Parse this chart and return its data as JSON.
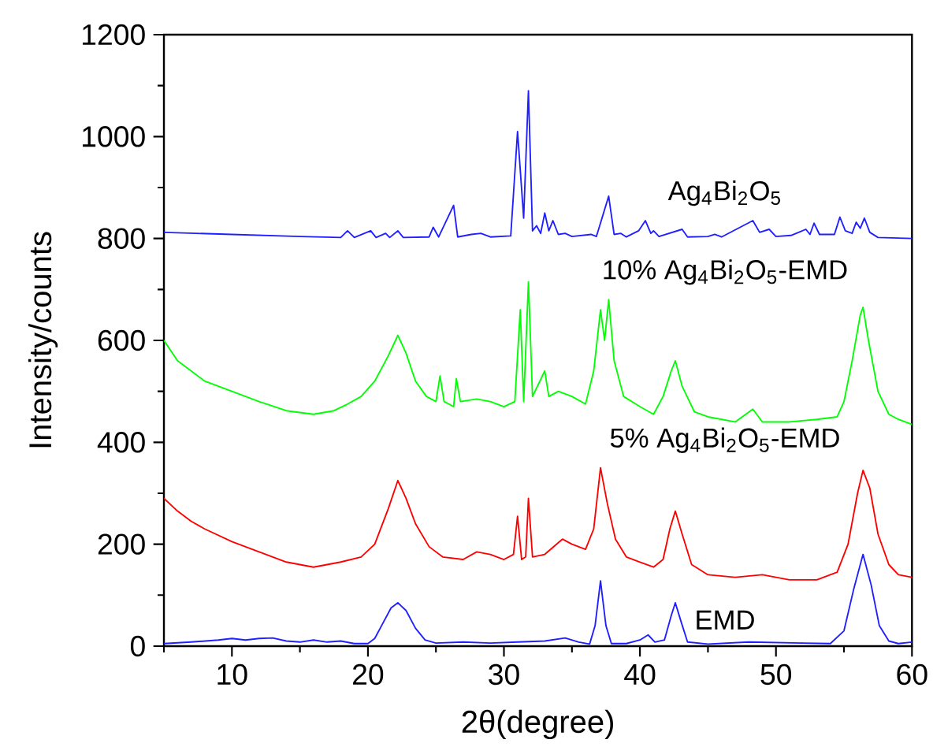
{
  "chart_data": {
    "type": "line",
    "xlabel": "2θ(degree)",
    "ylabel": "Intensity/counts",
    "xlim": [
      5,
      60
    ],
    "ylim": [
      0,
      1200
    ],
    "xticks": [
      {
        "value": 5,
        "label": null
      },
      10,
      {
        "value": 15,
        "label": null
      },
      20,
      {
        "value": 25,
        "label": null
      },
      30,
      {
        "value": 35,
        "label": null
      },
      40,
      {
        "value": 45,
        "label": null
      },
      50,
      {
        "value": 55,
        "label": null
      },
      60
    ],
    "yticks": [
      0,
      {
        "value": 100,
        "label": null
      },
      200,
      {
        "value": 300,
        "label": null
      },
      400,
      {
        "value": 500,
        "label": null
      },
      600,
      {
        "value": 700,
        "label": null
      },
      800,
      {
        "value": 900,
        "label": null
      },
      1000,
      {
        "value": 1100,
        "label": null
      },
      1200
    ],
    "series": [
      {
        "name": "EMD",
        "color": "#1f1fff",
        "x": [
          5,
          7,
          9,
          10,
          11,
          12,
          13,
          14,
          15,
          16,
          17,
          18,
          19,
          20,
          20.5,
          21,
          21.7,
          22.2,
          22.8,
          23.5,
          24.2,
          25,
          27,
          29,
          31,
          33,
          34.5,
          35.5,
          36.3,
          36.7,
          37.1,
          37.5,
          37.9,
          39,
          40,
          40.6,
          41.1,
          41.8,
          42.3,
          42.6,
          43,
          43.5,
          45,
          48,
          52,
          54,
          55,
          55.7,
          56.4,
          57,
          57.6,
          58.3,
          59,
          60
        ],
        "values": [
          5,
          8,
          12,
          15,
          12,
          15,
          16,
          10,
          8,
          12,
          8,
          10,
          5,
          5,
          15,
          40,
          75,
          85,
          70,
          35,
          12,
          6,
          8,
          6,
          8,
          10,
          16,
          8,
          4,
          40,
          128,
          40,
          5,
          5,
          12,
          22,
          8,
          12,
          60,
          85,
          50,
          8,
          4,
          8,
          6,
          5,
          30,
          110,
          180,
          120,
          40,
          10,
          5,
          8
        ]
      },
      {
        "name": "5% Ag$_{4}$Bi$_{2}$O$_{5}$-EMD",
        "color": "#ff0000",
        "x": [
          5,
          6,
          7,
          8,
          10,
          12,
          14,
          16,
          18,
          19.5,
          20.5,
          21.5,
          22.2,
          22.8,
          23.5,
          24.5,
          25.5,
          27,
          28,
          29,
          30,
          30.7,
          31,
          31.3,
          31.6,
          31.8,
          32.1,
          33,
          34.3,
          35,
          36,
          36.6,
          37.1,
          37.6,
          38.2,
          39,
          40,
          41,
          41.7,
          42.2,
          42.6,
          43.1,
          43.8,
          45,
          47,
          49,
          51,
          53,
          54.5,
          55.3,
          56,
          56.4,
          56.9,
          57.5,
          58.3,
          59,
          60
        ],
        "values": [
          290,
          265,
          245,
          230,
          205,
          185,
          165,
          155,
          165,
          175,
          200,
          270,
          325,
          290,
          240,
          195,
          175,
          170,
          185,
          180,
          170,
          180,
          255,
          170,
          175,
          290,
          175,
          180,
          210,
          200,
          190,
          230,
          350,
          280,
          210,
          175,
          165,
          155,
          170,
          230,
          265,
          220,
          160,
          140,
          135,
          140,
          130,
          130,
          145,
          200,
          300,
          345,
          310,
          220,
          160,
          140,
          135
        ]
      },
      {
        "name": "10% Ag$_{4}$Bi$_{2}$O$_{5}$-EMD",
        "color": "#00ff00",
        "x": [
          5,
          6,
          7,
          8,
          10,
          12,
          14,
          16,
          17.5,
          18.5,
          19.5,
          20.5,
          21.5,
          22.2,
          22.8,
          23.5,
          24.3,
          25,
          25.3,
          25.6,
          26.3,
          26.5,
          26.8,
          28,
          29,
          30,
          30.8,
          31.2,
          31.45,
          31.8,
          32.1,
          33,
          33.3,
          34,
          35,
          36,
          36.6,
          37.1,
          37.4,
          37.7,
          38.1,
          38.8,
          40,
          41,
          41.7,
          42.3,
          42.6,
          43.1,
          44,
          45,
          47,
          48.3,
          49,
          51,
          53,
          54.5,
          55,
          55.6,
          56.2,
          56.4,
          56.8,
          57.5,
          58.3,
          59,
          60
        ],
        "values": [
          600,
          560,
          540,
          520,
          500,
          480,
          462,
          455,
          462,
          475,
          490,
          520,
          570,
          610,
          575,
          520,
          490,
          480,
          530,
          480,
          470,
          525,
          480,
          485,
          480,
          470,
          480,
          660,
          480,
          715,
          490,
          540,
          490,
          500,
          490,
          475,
          540,
          660,
          600,
          680,
          560,
          490,
          470,
          455,
          490,
          540,
          560,
          510,
          460,
          450,
          440,
          465,
          440,
          440,
          445,
          450,
          480,
          560,
          650,
          665,
          600,
          500,
          455,
          445,
          435
        ]
      },
      {
        "name": "Ag$_{4}$Bi$_{2}$O$_{5}$",
        "color": "#1f1fff",
        "x": [
          5,
          10,
          15,
          18,
          18.5,
          19,
          20.2,
          20.6,
          21.3,
          21.6,
          22.2,
          22.6,
          24.5,
          24.8,
          25.2,
          26.3,
          26.6,
          27.6,
          28.3,
          29,
          30.5,
          31,
          31.45,
          31.8,
          32.1,
          32.4,
          32.7,
          33,
          33.3,
          33.6,
          34,
          34.5,
          35,
          36.4,
          36.8,
          37.7,
          38.1,
          38.6,
          39,
          39.9,
          40.4,
          40.8,
          41,
          41.4,
          43.1,
          43.5,
          45,
          45.5,
          46,
          48.3,
          48.8,
          49.5,
          50,
          51.1,
          52.2,
          52.5,
          52.8,
          53.2,
          54.3,
          54.7,
          55.1,
          55.6,
          55.9,
          56.2,
          56.5,
          56.9,
          57.5,
          60
        ],
        "values": [
          812,
          808,
          804,
          802,
          815,
          802,
          815,
          802,
          810,
          802,
          815,
          802,
          803,
          822,
          803,
          865,
          803,
          808,
          810,
          803,
          805,
          1010,
          840,
          1090,
          815,
          825,
          810,
          850,
          815,
          835,
          808,
          810,
          804,
          808,
          804,
          883,
          808,
          810,
          803,
          815,
          835,
          810,
          815,
          804,
          818,
          803,
          804,
          808,
          803,
          835,
          812,
          818,
          804,
          806,
          818,
          808,
          830,
          808,
          808,
          842,
          815,
          810,
          832,
          820,
          840,
          812,
          802,
          800
        ]
      }
    ]
  }
}
